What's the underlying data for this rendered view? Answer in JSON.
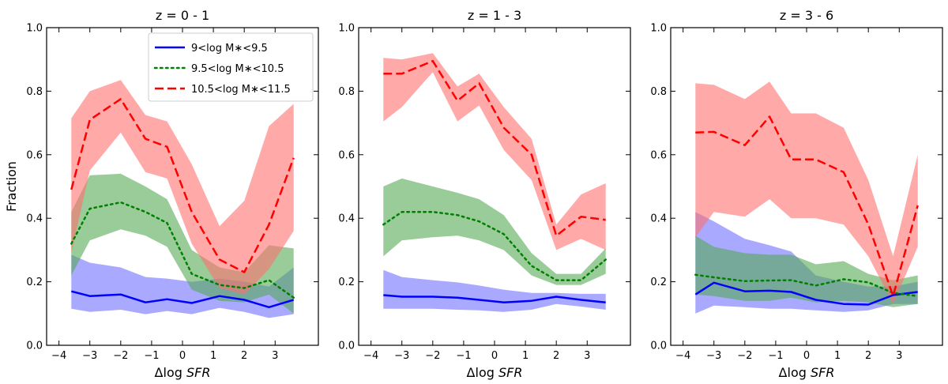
{
  "chart_data": [
    {
      "type": "line",
      "title": "z = 0 - 1",
      "xlabel": "Δlog SFR",
      "ylabel": "Fraction",
      "xlim": [
        -4.4,
        4.4
      ],
      "ylim": [
        0.0,
        1.0
      ],
      "xticks": [
        -4,
        -3,
        -2,
        -1,
        0,
        1,
        2,
        3
      ],
      "yticks": [
        0.0,
        0.2,
        0.4,
        0.6,
        0.8,
        1.0
      ],
      "x": [
        -3.6,
        -3.0,
        -2.0,
        -1.2,
        -0.5,
        0.3,
        1.2,
        2.0,
        2.8,
        3.6
      ],
      "series": [
        {
          "key": "low",
          "color": "#0000ff",
          "fill": "#7070ff",
          "style": "solid",
          "values": [
            0.17,
            0.155,
            0.16,
            0.135,
            0.145,
            0.133,
            0.155,
            0.143,
            0.12,
            0.143
          ],
          "lower": [
            0.115,
            0.105,
            0.112,
            0.098,
            0.108,
            0.098,
            0.118,
            0.105,
            0.086,
            0.098
          ],
          "upper": [
            0.285,
            0.26,
            0.245,
            0.215,
            0.21,
            0.2,
            0.21,
            0.2,
            0.185,
            0.245
          ]
        },
        {
          "key": "mid",
          "color": "#008000",
          "fill": "#55aa55",
          "style": "dotted",
          "values": [
            0.32,
            0.43,
            0.45,
            0.42,
            0.385,
            0.225,
            0.19,
            0.18,
            0.205,
            0.15
          ],
          "lower": [
            0.22,
            0.33,
            0.365,
            0.345,
            0.31,
            0.175,
            0.14,
            0.135,
            0.16,
            0.1
          ],
          "upper": [
            0.42,
            0.535,
            0.54,
            0.5,
            0.46,
            0.3,
            0.245,
            0.23,
            0.315,
            0.305
          ]
        },
        {
          "key": "high",
          "color": "#ff0000",
          "fill": "#ff7070",
          "style": "dashed",
          "values": [
            0.49,
            0.71,
            0.775,
            0.65,
            0.625,
            0.42,
            0.27,
            0.23,
            0.38,
            0.59
          ],
          "lower": [
            0.29,
            0.55,
            0.67,
            0.545,
            0.525,
            0.32,
            0.18,
            0.16,
            0.24,
            0.36
          ],
          "upper": [
            0.715,
            0.8,
            0.835,
            0.725,
            0.705,
            0.57,
            0.375,
            0.455,
            0.69,
            0.76
          ]
        }
      ],
      "legend": {
        "placement": "upper-center",
        "entries": [
          {
            "key": "low",
            "label": "9<log M∗<9.5"
          },
          {
            "key": "mid",
            "label": "9.5<log M∗<10.5"
          },
          {
            "key": "high",
            "label": "10.5<log M∗<11.5"
          }
        ]
      }
    },
    {
      "type": "line",
      "title": "z = 1 - 3",
      "xlabel": "Δlog SFR",
      "ylabel": "",
      "xlim": [
        -4.4,
        4.4
      ],
      "ylim": [
        0.0,
        1.0
      ],
      "xticks": [
        -4,
        -3,
        -2,
        -1,
        0,
        1,
        2,
        3
      ],
      "yticks": [
        0.0,
        0.2,
        0.4,
        0.6,
        0.8,
        1.0
      ],
      "x": [
        -3.6,
        -3.0,
        -2.0,
        -1.2,
        -0.5,
        0.3,
        1.2,
        2.0,
        2.8,
        3.6
      ],
      "series": [
        {
          "key": "low",
          "color": "#0000ff",
          "fill": "#7070ff",
          "style": "solid",
          "values": [
            0.158,
            0.153,
            0.153,
            0.15,
            0.143,
            0.135,
            0.14,
            0.153,
            0.143,
            0.135
          ],
          "lower": [
            0.115,
            0.115,
            0.115,
            0.112,
            0.11,
            0.105,
            0.112,
            0.13,
            0.122,
            0.112
          ],
          "upper": [
            0.237,
            0.215,
            0.205,
            0.198,
            0.188,
            0.175,
            0.165,
            0.165,
            0.162,
            0.162
          ]
        },
        {
          "key": "mid",
          "color": "#008000",
          "fill": "#55aa55",
          "style": "dotted",
          "values": [
            0.38,
            0.42,
            0.42,
            0.41,
            0.39,
            0.35,
            0.25,
            0.205,
            0.205,
            0.27
          ],
          "lower": [
            0.28,
            0.33,
            0.34,
            0.345,
            0.33,
            0.3,
            0.22,
            0.19,
            0.19,
            0.225
          ],
          "upper": [
            0.5,
            0.525,
            0.5,
            0.48,
            0.46,
            0.41,
            0.29,
            0.225,
            0.225,
            0.305
          ]
        },
        {
          "key": "high",
          "color": "#ff0000",
          "fill": "#ff7070",
          "style": "dashed",
          "values": [
            0.855,
            0.855,
            0.895,
            0.77,
            0.825,
            0.685,
            0.6,
            0.345,
            0.405,
            0.395
          ],
          "lower": [
            0.705,
            0.75,
            0.86,
            0.705,
            0.755,
            0.615,
            0.52,
            0.3,
            0.335,
            0.3
          ],
          "upper": [
            0.905,
            0.9,
            0.92,
            0.815,
            0.855,
            0.75,
            0.65,
            0.38,
            0.475,
            0.51
          ]
        }
      ]
    },
    {
      "type": "line",
      "title": "z = 3 - 6",
      "xlabel": "Δlog SFR",
      "ylabel": "",
      "xlim": [
        -4.4,
        4.4
      ],
      "ylim": [
        0.0,
        1.0
      ],
      "xticks": [
        -4,
        -3,
        -2,
        -1,
        0,
        1,
        2,
        3
      ],
      "yticks": [
        0.0,
        0.2,
        0.4,
        0.6,
        0.8,
        1.0
      ],
      "x": [
        -3.6,
        -3.0,
        -2.0,
        -1.2,
        -0.5,
        0.3,
        1.2,
        2.0,
        2.8,
        3.6
      ],
      "series": [
        {
          "key": "low",
          "color": "#0000ff",
          "fill": "#7070ff",
          "style": "solid",
          "values": [
            0.16,
            0.197,
            0.17,
            0.172,
            0.168,
            0.143,
            0.13,
            0.128,
            0.158,
            0.168
          ],
          "lower": [
            0.1,
            0.125,
            0.12,
            0.115,
            0.115,
            0.11,
            0.105,
            0.11,
            0.13,
            0.13
          ],
          "upper": [
            0.42,
            0.39,
            0.335,
            0.315,
            0.295,
            0.22,
            0.2,
            0.185,
            0.185,
            0.2
          ]
        },
        {
          "key": "mid",
          "color": "#008000",
          "fill": "#55aa55",
          "style": "dotted",
          "values": [
            0.222,
            0.214,
            0.202,
            0.204,
            0.205,
            0.188,
            0.208,
            0.198,
            0.165,
            0.155
          ],
          "lower": [
            0.16,
            0.155,
            0.14,
            0.14,
            0.15,
            0.135,
            0.14,
            0.135,
            0.12,
            0.13
          ],
          "upper": [
            0.345,
            0.31,
            0.29,
            0.285,
            0.285,
            0.255,
            0.265,
            0.225,
            0.205,
            0.22
          ]
        },
        {
          "key": "high",
          "color": "#ff0000",
          "fill": "#ff7070",
          "style": "dashed",
          "values": [
            0.67,
            0.672,
            0.63,
            0.72,
            0.585,
            0.585,
            0.545,
            0.38,
            0.155,
            0.44
          ],
          "lower": [
            0.34,
            0.42,
            0.405,
            0.46,
            0.4,
            0.4,
            0.38,
            0.28,
            0.13,
            0.31
          ],
          "upper": [
            0.825,
            0.82,
            0.775,
            0.83,
            0.73,
            0.73,
            0.685,
            0.52,
            0.28,
            0.6
          ]
        }
      ]
    }
  ]
}
